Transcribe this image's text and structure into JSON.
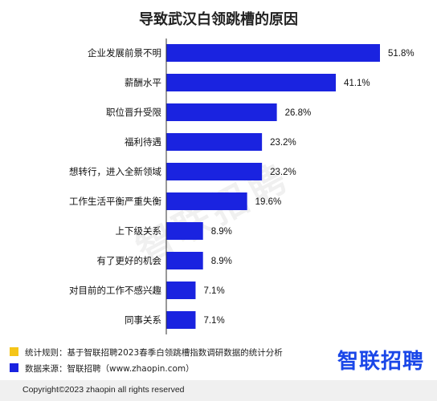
{
  "chart_data": {
    "type": "bar",
    "orientation": "horizontal",
    "title": "导致武汉白领跳槽的原因",
    "categories": [
      "企业发展前景不明",
      "薪酬水平",
      "职位晋升受限",
      "福利待遇",
      "想转行，进入全新领域",
      "工作生活平衡严重失衡",
      "上下级关系",
      "有了更好的机会",
      "对目前的工作不感兴趣",
      "同事关系"
    ],
    "values": [
      51.8,
      41.1,
      26.8,
      23.2,
      23.2,
      19.6,
      8.9,
      8.9,
      7.1,
      7.1
    ],
    "value_labels": [
      "51.8%",
      "41.1%",
      "26.8%",
      "23.2%",
      "23.2%",
      "19.6%",
      "8.9%",
      "8.9%",
      "7.1%",
      "7.1%"
    ],
    "unit": "%",
    "xlim": [
      0,
      51.8
    ],
    "bar_color": "#1a23e0",
    "grid": false,
    "legend": "none"
  },
  "notes": [
    {
      "color": "#f5c518",
      "text": "统计规则：基于智联招聘2023春季白领跳槽指数调研数据的统计分析"
    },
    {
      "color": "#1a23e0",
      "text": "数据来源：智联招聘（www.zhaopin.com）"
    }
  ],
  "watermark": "智联招聘",
  "logo": "智联招聘",
  "footer": "Copyright©2023 zhaopin all rights reserved"
}
